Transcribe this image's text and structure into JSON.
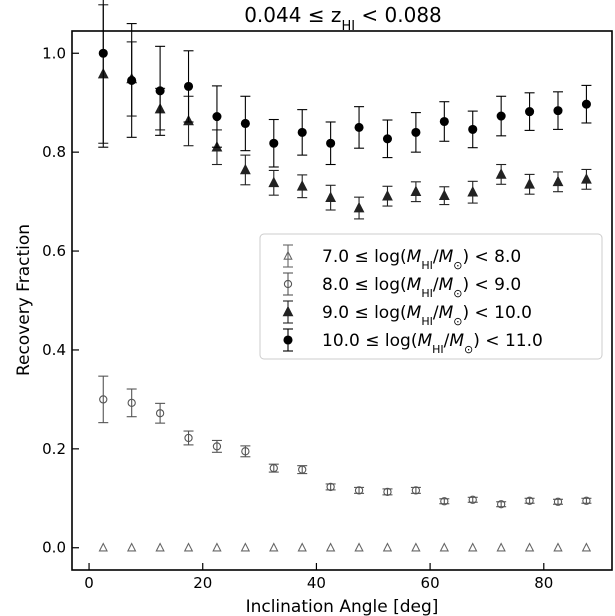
{
  "chart_data": {
    "type": "scatter",
    "title": "0.044 ≤ z_HI < 0.088",
    "title_parts": {
      "prefix": "0.044 ≤ z",
      "subscript": "HI",
      "suffix": " < 0.088"
    },
    "xlabel": "Inclination Angle [deg]",
    "ylabel": "Recovery Fraction",
    "xlim": [
      -3,
      92
    ],
    "ylim": [
      -0.045,
      1.045
    ],
    "xticks": [
      0,
      20,
      40,
      60,
      80
    ],
    "xtick_labels": [
      "0",
      "20",
      "40",
      "60",
      "80"
    ],
    "yticks": [
      0.0,
      0.2,
      0.4,
      0.6,
      0.8,
      1.0
    ],
    "ytick_labels": [
      "0.0",
      "0.2",
      "0.4",
      "0.6",
      "0.8",
      "1.0"
    ],
    "grid": false,
    "legend_position": "center-right",
    "x": [
      2.5,
      7.5,
      12.5,
      17.5,
      22.5,
      27.5,
      32.5,
      37.5,
      42.5,
      47.5,
      52.5,
      57.5,
      62.5,
      67.5,
      72.5,
      77.5,
      82.5,
      87.5
    ],
    "series": [
      {
        "name": "7.0 ≤ log(M_HI/M_⊙) < 8.0",
        "legend": {
          "pre": "7.0  ≤  log(",
          "mid": "/",
          "post": ") < 8.0"
        },
        "marker": "triangle-open",
        "color": "#666666",
        "values": [
          0,
          0,
          0,
          0,
          0,
          0,
          0,
          0,
          0,
          0,
          0,
          0,
          0,
          0,
          0,
          0,
          0,
          0
        ],
        "errors": [
          0,
          0,
          0,
          0,
          0,
          0,
          0,
          0,
          0,
          0,
          0,
          0,
          0,
          0,
          0,
          0,
          0,
          0
        ]
      },
      {
        "name": "8.0 ≤ log(M_HI/M_⊙) < 9.0",
        "legend": {
          "pre": "8.0  ≤  log(",
          "mid": "/",
          "post": ") < 9.0"
        },
        "marker": "circle-open",
        "color": "#555555",
        "values": [
          0.3,
          0.293,
          0.272,
          0.222,
          0.205,
          0.195,
          0.161,
          0.158,
          0.123,
          0.116,
          0.113,
          0.116,
          0.094,
          0.097,
          0.088,
          0.095,
          0.093,
          0.095
        ],
        "errors": [
          0.047,
          0.028,
          0.02,
          0.014,
          0.012,
          0.011,
          0.008,
          0.008,
          0.006,
          0.006,
          0.006,
          0.006,
          0.005,
          0.005,
          0.005,
          0.005,
          0.005,
          0.005
        ]
      },
      {
        "name": "9.0 ≤ log(M_HI/M_⊙) < 10.0",
        "legend": {
          "pre": "9.0  ≤  log(",
          "mid": "/",
          "post": ") < 10.0"
        },
        "marker": "triangle-filled",
        "color": "#222222",
        "values": [
          0.958,
          0.948,
          0.887,
          0.863,
          0.81,
          0.764,
          0.738,
          0.731,
          0.708,
          0.687,
          0.711,
          0.72,
          0.712,
          0.719,
          0.755,
          0.735,
          0.74,
          0.745
        ],
        "errors": [
          0.14,
          0.075,
          0.042,
          0.05,
          0.035,
          0.03,
          0.025,
          0.023,
          0.025,
          0.022,
          0.02,
          0.02,
          0.018,
          0.022,
          0.02,
          0.02,
          0.02,
          0.02
        ]
      },
      {
        "name": "10.0 ≤ log(M_HI/M_⊙) < 11.0",
        "legend": {
          "pre": "10.0  ≤  log(",
          "mid": "/",
          "post": ") < 11.0"
        },
        "marker": "circle-filled",
        "color": "#000000",
        "values": [
          1.0,
          0.945,
          0.924,
          0.933,
          0.872,
          0.858,
          0.818,
          0.84,
          0.818,
          0.85,
          0.827,
          0.84,
          0.862,
          0.846,
          0.873,
          0.882,
          0.884,
          0.897
        ],
        "errors": [
          0.19,
          0.115,
          0.09,
          0.072,
          0.062,
          0.055,
          0.048,
          0.046,
          0.043,
          0.042,
          0.038,
          0.04,
          0.04,
          0.037,
          0.04,
          0.038,
          0.038,
          0.038
        ]
      }
    ]
  }
}
